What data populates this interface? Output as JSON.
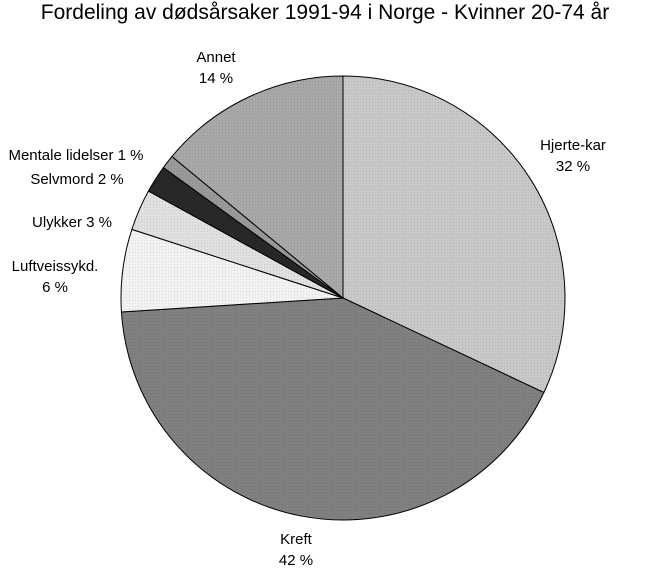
{
  "chart_data": {
    "type": "pie",
    "title": "Fordeling av dødsårsaker 1991-94 i Norge  -  Kvinner 20-74 år",
    "slices": [
      {
        "label": "Hjerte-kar",
        "value": 32,
        "value_label": "32 %",
        "color": "#c8c8c8"
      },
      {
        "label": "Kreft",
        "value": 42,
        "value_label": "42 %",
        "color": "#808080"
      },
      {
        "label": "Luftveissykd.",
        "value": 6,
        "value_label": "6 %",
        "color": "#f2f2f2"
      },
      {
        "label": "Ulykker",
        "value": 3,
        "value_label": "3 %",
        "color": "#e0e0e0"
      },
      {
        "label": "Selvmord",
        "value": 2,
        "value_label": "2 %",
        "color": "#282828"
      },
      {
        "label": "Mentale lidelser",
        "value": 1,
        "value_label": "1 %",
        "color": "#999999"
      },
      {
        "label": "Annet",
        "value": 14,
        "value_label": "14 %",
        "color": "#a8a8a8"
      }
    ],
    "start_angle": "12 o'clock",
    "direction": "clockwise",
    "legend": "none"
  }
}
